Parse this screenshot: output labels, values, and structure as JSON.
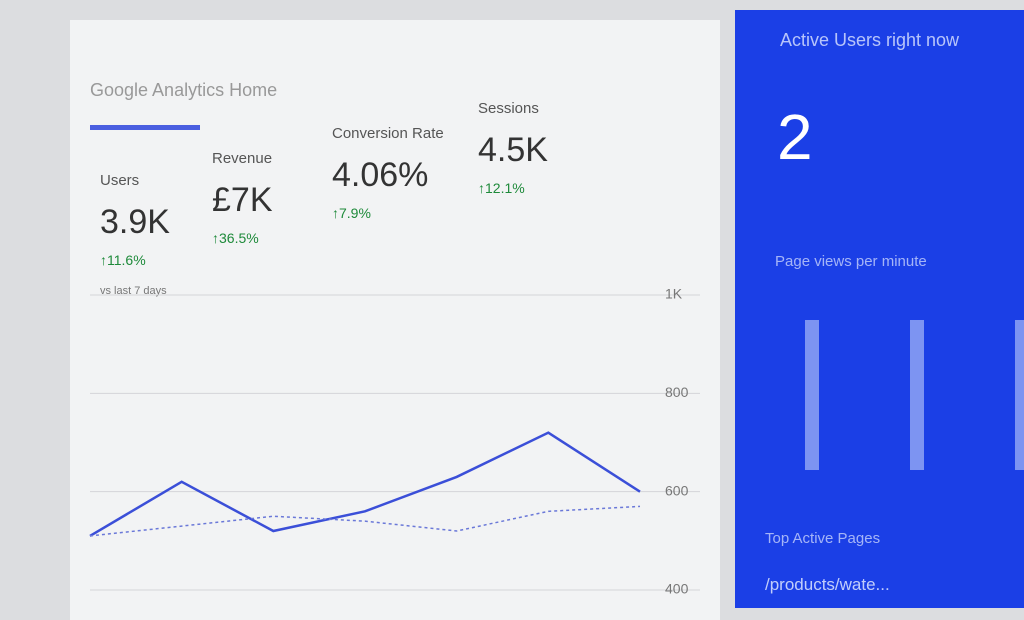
{
  "header": {
    "title": "Google Analytics Home"
  },
  "metrics": [
    {
      "label": "Users",
      "value": "3.9K",
      "change": "↑11.6%"
    },
    {
      "label": "Revenue",
      "value": "£7K",
      "change": "↑36.5%"
    },
    {
      "label": "Conversion Rate",
      "value": "4.06%",
      "change": "↑7.9%"
    },
    {
      "label": "Sessions",
      "value": "4.5K",
      "change": "↑12.1%"
    }
  ],
  "comparison": "vs last 7 days",
  "chart": {
    "type": "line",
    "ylim": [
      400,
      1000
    ],
    "yticks": [
      {
        "value": 400,
        "label": "400"
      },
      {
        "value": 600,
        "label": "600"
      },
      {
        "value": 800,
        "label": "800"
      },
      {
        "value": 1000,
        "label": "1K"
      }
    ],
    "series": [
      {
        "color": "#3b4fd8",
        "style": "solid",
        "values": [
          510,
          620,
          520,
          560,
          630,
          720,
          600
        ]
      },
      {
        "color": "#6a78d8",
        "style": "dotted",
        "values": [
          510,
          530,
          550,
          540,
          520,
          560,
          570
        ]
      }
    ]
  },
  "sidebar": {
    "title": "Active Users right now",
    "value": "2",
    "subtitle": "Page views per minute",
    "bars": [
      1,
      1,
      1
    ],
    "pages_title": "Top Active Pages",
    "page": "/products/wate..."
  }
}
